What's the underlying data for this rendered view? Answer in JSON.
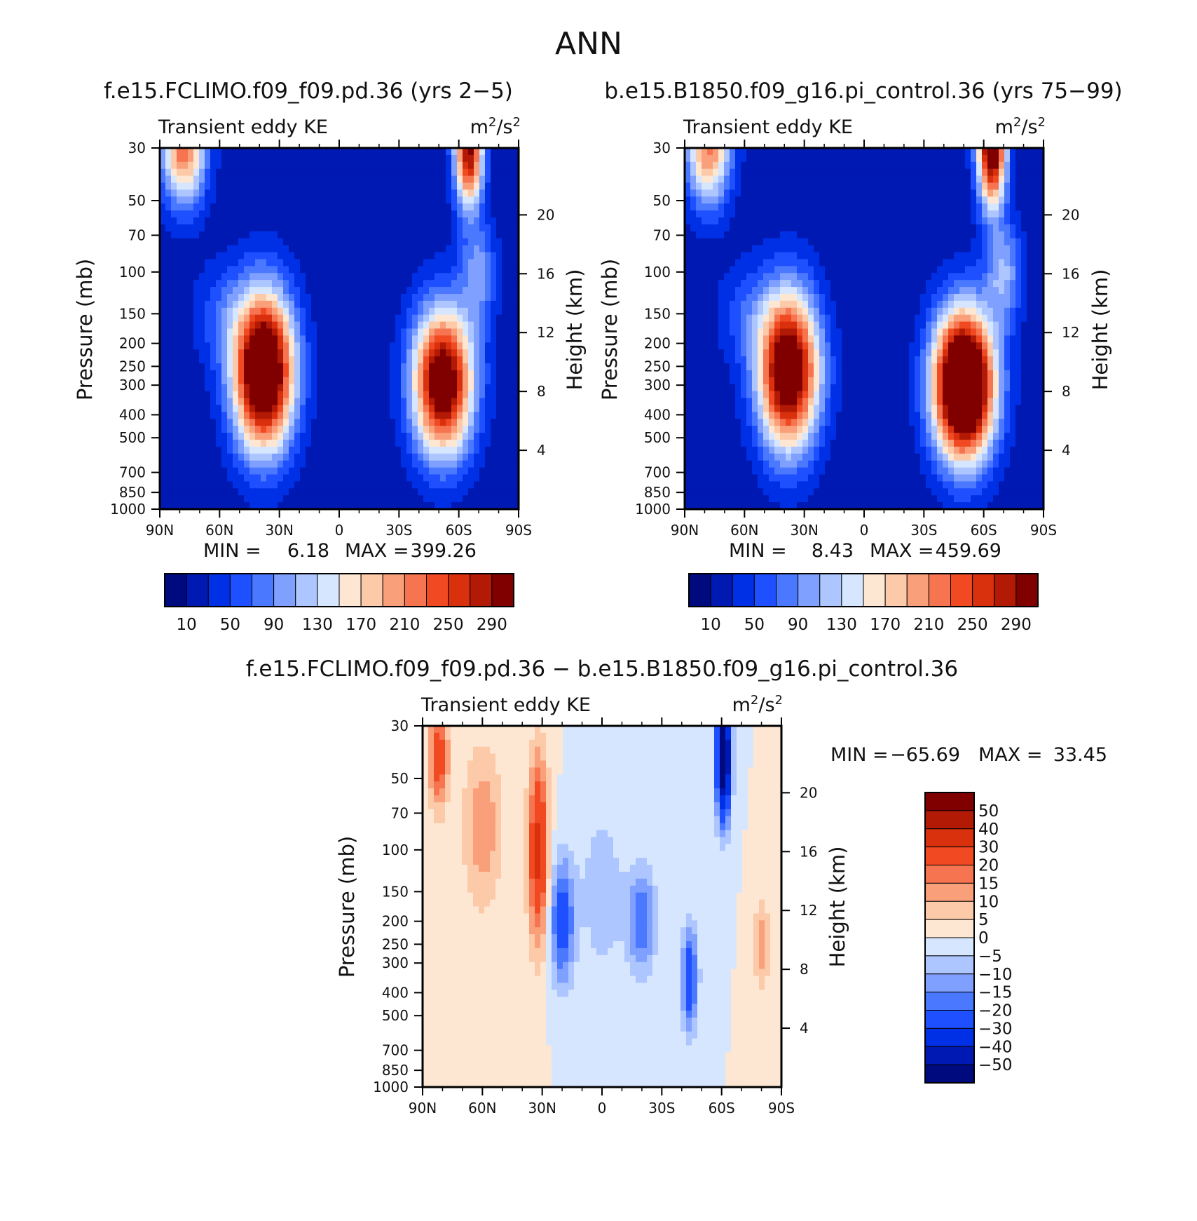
{
  "figure_title": "ANN",
  "colors": {
    "abs_palette": [
      "#000a7f",
      "#0019b3",
      "#0030e6",
      "#1f50ff",
      "#4a78ff",
      "#7fa0ff",
      "#adc6ff",
      "#d6e6ff",
      "#fde7d2",
      "#fcc9a9",
      "#f9a07a",
      "#f6744f",
      "#f14a22",
      "#d9300d",
      "#b21a05",
      "#800000"
    ],
    "diff_palette": [
      "#000a7f",
      "#0019b3",
      "#0030e6",
      "#1f50ff",
      "#4a78ff",
      "#7fa0ff",
      "#adc6ff",
      "#d6e6ff",
      "#fde7d2",
      "#fcc9a9",
      "#f9a07a",
      "#f6744f",
      "#f14a22",
      "#d9300d",
      "#b21a05",
      "#800000"
    ],
    "background_fill": "#1f50ff"
  },
  "chart_data": [
    {
      "id": "panel1",
      "type": "heatmap",
      "title": "f.e15.FCLIMO.f09_f09.pd.36 (yrs 2−5)",
      "left_label": "Transient eddy KE",
      "units_base": "m",
      "units_sup1": "2",
      "units_mid": "/s",
      "units_sup2": "2",
      "ylabel": "Pressure (mb)",
      "y2label": "Height (km)",
      "x_ticks": [
        "90N",
        "60N",
        "30N",
        "0",
        "30S",
        "60S",
        "90S"
      ],
      "x_tick_values": [
        90,
        60,
        30,
        0,
        -30,
        -60,
        -90
      ],
      "y_ticks": [
        "30",
        "50",
        "70",
        "100",
        "150",
        "200",
        "250",
        "300",
        "400",
        "500",
        "700",
        "850",
        "1000"
      ],
      "y_tick_values": [
        30,
        50,
        70,
        100,
        150,
        200,
        250,
        300,
        400,
        500,
        700,
        850,
        1000
      ],
      "y2_ticks": [
        "20",
        "16",
        "12",
        "8",
        "4"
      ],
      "y2_tick_values": [
        20,
        16,
        12,
        8,
        4
      ],
      "stats": {
        "min_label": "MIN =",
        "min_value": "6.18",
        "max_label": "MAX =",
        "max_value": "399.26"
      },
      "colorbar_labels": [
        "10",
        "50",
        "90",
        "130",
        "170",
        "210",
        "250",
        "290"
      ],
      "levels": [
        10,
        30,
        50,
        70,
        90,
        110,
        130,
        150,
        170,
        190,
        210,
        230,
        250,
        270,
        290
      ],
      "features": [
        {
          "name": "nh-jet-core",
          "lat": 38,
          "p": 250,
          "value": 399.26
        },
        {
          "name": "sh-jet-core",
          "lat": -52,
          "p": 300,
          "value": 340
        },
        {
          "name": "sh-polar-vortex",
          "lat": -65,
          "p": 30,
          "value": 300
        },
        {
          "name": "nh-polar-stratosphere",
          "lat": 78,
          "p": 30,
          "value": 220
        },
        {
          "name": "equatorial-minimum",
          "lat": 0,
          "p": 700,
          "value": 6.18
        }
      ]
    },
    {
      "id": "panel2",
      "type": "heatmap",
      "title": "b.e15.B1850.f09_g16.pi_control.36 (yrs 75−99)",
      "left_label": "Transient eddy KE",
      "units_base": "m",
      "units_sup1": "2",
      "units_mid": "/s",
      "units_sup2": "2",
      "ylabel": "Pressure (mb)",
      "y2label": "Height (km)",
      "x_ticks": [
        "90N",
        "60N",
        "30N",
        "0",
        "30S",
        "60S",
        "90S"
      ],
      "x_tick_values": [
        90,
        60,
        30,
        0,
        -30,
        -60,
        -90
      ],
      "y_ticks": [
        "30",
        "50",
        "70",
        "100",
        "150",
        "200",
        "250",
        "300",
        "400",
        "500",
        "700",
        "850",
        "1000"
      ],
      "y_tick_values": [
        30,
        50,
        70,
        100,
        150,
        200,
        250,
        300,
        400,
        500,
        700,
        850,
        1000
      ],
      "y2_ticks": [
        "20",
        "16",
        "12",
        "8",
        "4"
      ],
      "y2_tick_values": [
        20,
        16,
        12,
        8,
        4
      ],
      "stats": {
        "min_label": "MIN =",
        "min_value": "8.43",
        "max_label": "MAX =",
        "max_value": "459.69"
      },
      "colorbar_labels": [
        "10",
        "50",
        "90",
        "130",
        "170",
        "210",
        "250",
        "290"
      ],
      "levels": [
        10,
        30,
        50,
        70,
        90,
        110,
        130,
        150,
        170,
        190,
        210,
        230,
        250,
        270,
        290
      ],
      "features": [
        {
          "name": "nh-jet-core",
          "lat": 38,
          "p": 250,
          "value": 360
        },
        {
          "name": "sh-jet-core",
          "lat": -50,
          "p": 300,
          "value": 459.69
        },
        {
          "name": "sh-polar-vortex",
          "lat": -65,
          "p": 30,
          "value": 340
        },
        {
          "name": "nh-polar-stratosphere",
          "lat": 78,
          "p": 30,
          "value": 210
        },
        {
          "name": "equatorial-minimum",
          "lat": 0,
          "p": 700,
          "value": 8.43
        }
      ]
    },
    {
      "id": "panel3",
      "type": "heatmap",
      "title": "f.e15.FCLIMO.f09_f09.pd.36 − b.e15.B1850.f09_g16.pi_control.36",
      "left_label": "Transient eddy KE",
      "units_base": "m",
      "units_sup1": "2",
      "units_mid": "/s",
      "units_sup2": "2",
      "ylabel": "Pressure (mb)",
      "y2label": "Height (km)",
      "x_ticks": [
        "90N",
        "60N",
        "30N",
        "0",
        "30S",
        "60S",
        "90S"
      ],
      "x_tick_values": [
        90,
        60,
        30,
        0,
        -30,
        -60,
        -90
      ],
      "y_ticks": [
        "30",
        "50",
        "70",
        "100",
        "150",
        "200",
        "250",
        "300",
        "400",
        "500",
        "700",
        "850",
        "1000"
      ],
      "y_tick_values": [
        30,
        50,
        70,
        100,
        150,
        200,
        250,
        300,
        400,
        500,
        700,
        850,
        1000
      ],
      "y2_ticks": [
        "20",
        "16",
        "12",
        "8",
        "4"
      ],
      "y2_tick_values": [
        20,
        16,
        12,
        8,
        4
      ],
      "stats": {
        "min_label": "MIN =",
        "min_value": "−65.69",
        "max_label": "MAX =",
        "max_value": "33.45"
      },
      "colorbar_labels": [
        "50",
        "40",
        "30",
        "20",
        "15",
        "10",
        "5",
        "0",
        "−5",
        "−10",
        "−15",
        "−20",
        "−30",
        "−40",
        "−50"
      ],
      "levels": [
        -50,
        -40,
        -30,
        -20,
        -15,
        -10,
        -5,
        0,
        5,
        10,
        15,
        20,
        30,
        40,
        50
      ],
      "features": [
        {
          "name": "subtropical-increase",
          "lat": 32,
          "p": 100,
          "value": 33.45
        },
        {
          "name": "nh-high-latitude-increase",
          "lat": 82,
          "p": 40,
          "value": 25
        },
        {
          "name": "sh-vortex-decrease",
          "lat": -61,
          "p": 40,
          "value": -65.69
        },
        {
          "name": "tropical-decrease",
          "lat": 20,
          "p": 200,
          "value": -25
        },
        {
          "name": "sh-midlat-decrease",
          "lat": -44,
          "p": 350,
          "value": -28
        }
      ]
    }
  ]
}
